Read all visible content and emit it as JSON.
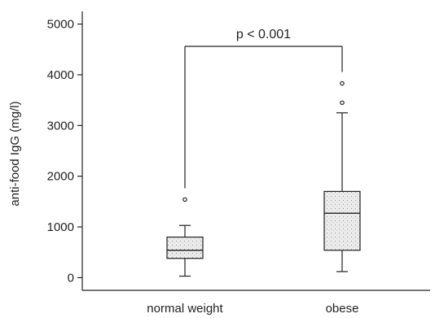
{
  "chart_data": {
    "type": "box",
    "ylabel": "anti-food IgG (mg/l)",
    "ylim": [
      -250,
      5250
    ],
    "yticks": [
      0,
      1000,
      2000,
      3000,
      4000,
      5000
    ],
    "categories": [
      "normal weight",
      "obese"
    ],
    "boxes": [
      {
        "category": "normal weight",
        "whisker_low": 30,
        "q1": 380,
        "median": 540,
        "q3": 800,
        "whisker_high": 1030,
        "outliers": [
          1540
        ]
      },
      {
        "category": "obese",
        "whisker_low": 120,
        "q1": 540,
        "median": 1270,
        "q3": 1700,
        "whisker_high": 3250,
        "outliers": [
          3450,
          3830
        ]
      }
    ],
    "annotation": {
      "text": "p < 0.001",
      "bracket_level": 4560,
      "from": "normal weight",
      "to": "obese"
    },
    "box_fill": "#ececec",
    "box_stroke": "#222222",
    "grid": false
  }
}
